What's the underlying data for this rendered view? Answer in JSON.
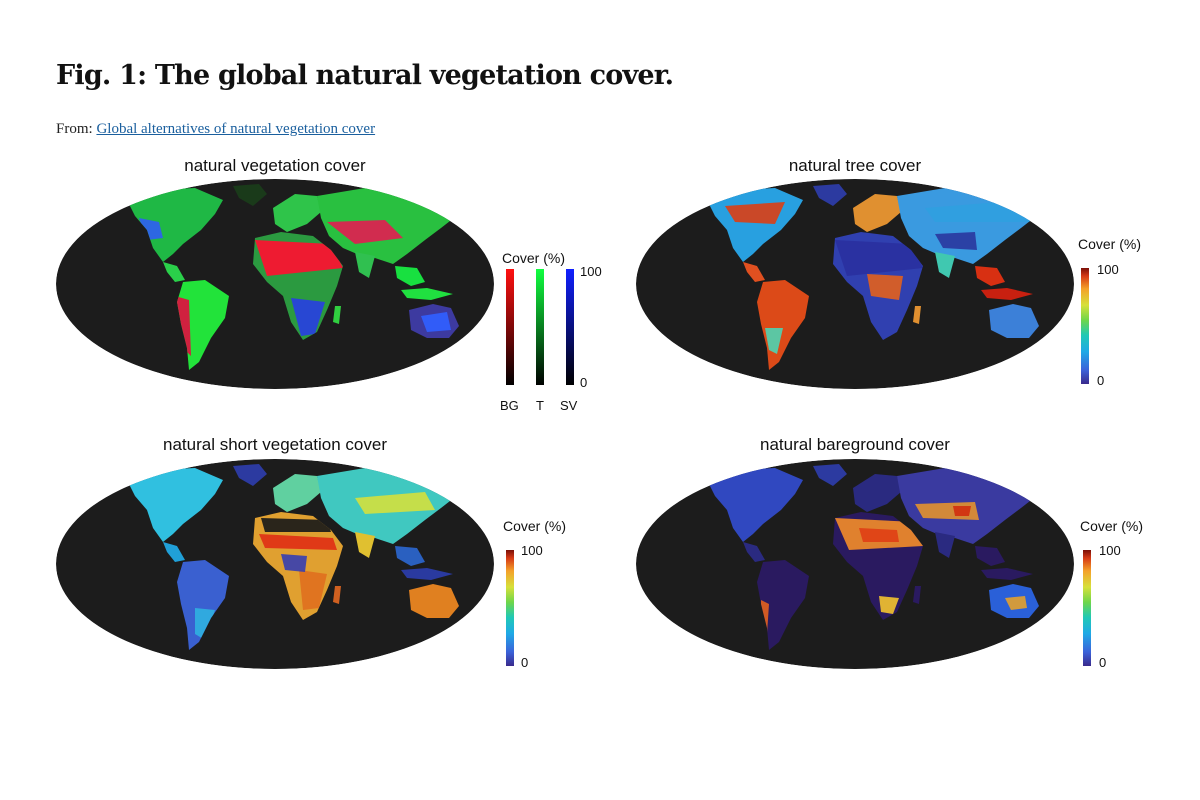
{
  "figure": {
    "title": "Fig. 1: The global natural vegetation cover.",
    "from_label": "From:",
    "from_link": "Global alternatives of natural vegetation cover"
  },
  "panels": [
    {
      "title": "natural vegetation cover",
      "style": "rgb-composite"
    },
    {
      "title": "natural tree cover",
      "style": "rainbow"
    },
    {
      "title": "natural short vegetation cover",
      "style": "rainbow"
    },
    {
      "title": "natural bareground cover",
      "style": "rainbow"
    }
  ],
  "rgb_legend": {
    "title": "Cover (%)",
    "max": "100",
    "min": "0",
    "channels": [
      "BG",
      "T",
      "SV"
    ],
    "colors": [
      "#ff1010",
      "#10ff40",
      "#1020ff"
    ]
  },
  "colorbar": {
    "title": "Cover (%)",
    "max": "100",
    "min": "0"
  },
  "colors": {
    "ocean": "#1c1c1c",
    "link": "#1a5f9e"
  }
}
